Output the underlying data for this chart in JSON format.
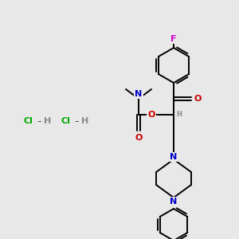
{
  "bg_color": "#e8e8e8",
  "bond_color": "#000000",
  "atom_colors": {
    "F": "#cc00cc",
    "O": "#cc0000",
    "N": "#0000cc",
    "H": "#888888",
    "C": "#000000",
    "Cl": "#00aa00"
  },
  "figsize": [
    3.0,
    3.0
  ],
  "dpi": 100
}
